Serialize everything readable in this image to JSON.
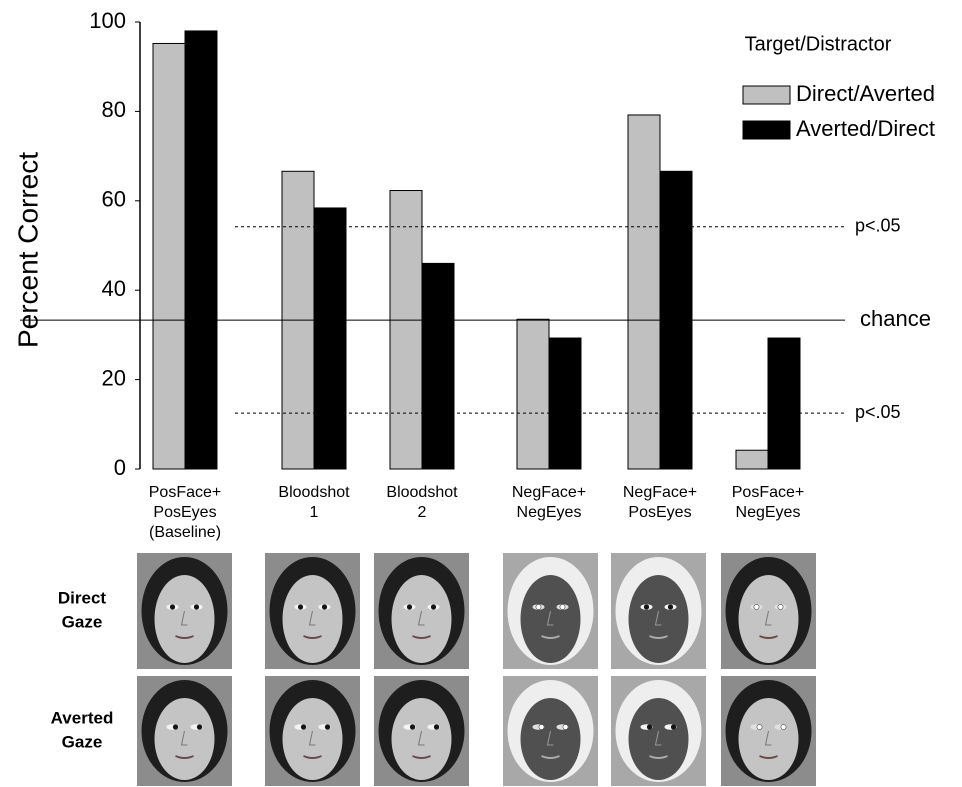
{
  "chart_data": {
    "type": "bar",
    "y_label": "Percent Correct",
    "categories": [
      [
        "PosFace+",
        "PosEyes",
        "(Baseline)"
      ],
      [
        "Bloodshot",
        "1"
      ],
      [
        "Bloodshot",
        "2"
      ],
      [
        "NegFace+",
        "NegEyes"
      ],
      [
        "NegFace+",
        "PosEyes"
      ],
      [
        "PosFace+",
        "NegEyes"
      ]
    ],
    "series": [
      {
        "name": "Direct/Averted",
        "color": "#c0c0c0",
        "values": [
          95.2,
          66.6,
          62.3,
          33.5,
          79.2,
          4.2
        ]
      },
      {
        "name": "Averted/Direct",
        "color": "#000000",
        "values": [
          98.0,
          58.4,
          46.0,
          29.3,
          66.6,
          29.3
        ]
      }
    ],
    "legend_title": "Target/Distractor",
    "legend_position": "top-right",
    "ylim": [
      0,
      100
    ],
    "yticks": [
      0,
      20,
      40,
      60,
      80,
      100
    ],
    "reference_lines": [
      {
        "value": 54.2,
        "label": "p<.05",
        "style": "dashed"
      },
      {
        "value": 33.3,
        "label": "chance",
        "style": "solid"
      },
      {
        "value": 12.5,
        "label": "p<.05",
        "style": "dashed"
      }
    ]
  },
  "face_panels": {
    "row_labels": [
      [
        "Direct",
        "Gaze"
      ],
      [
        "Averted",
        "Gaze"
      ]
    ]
  }
}
